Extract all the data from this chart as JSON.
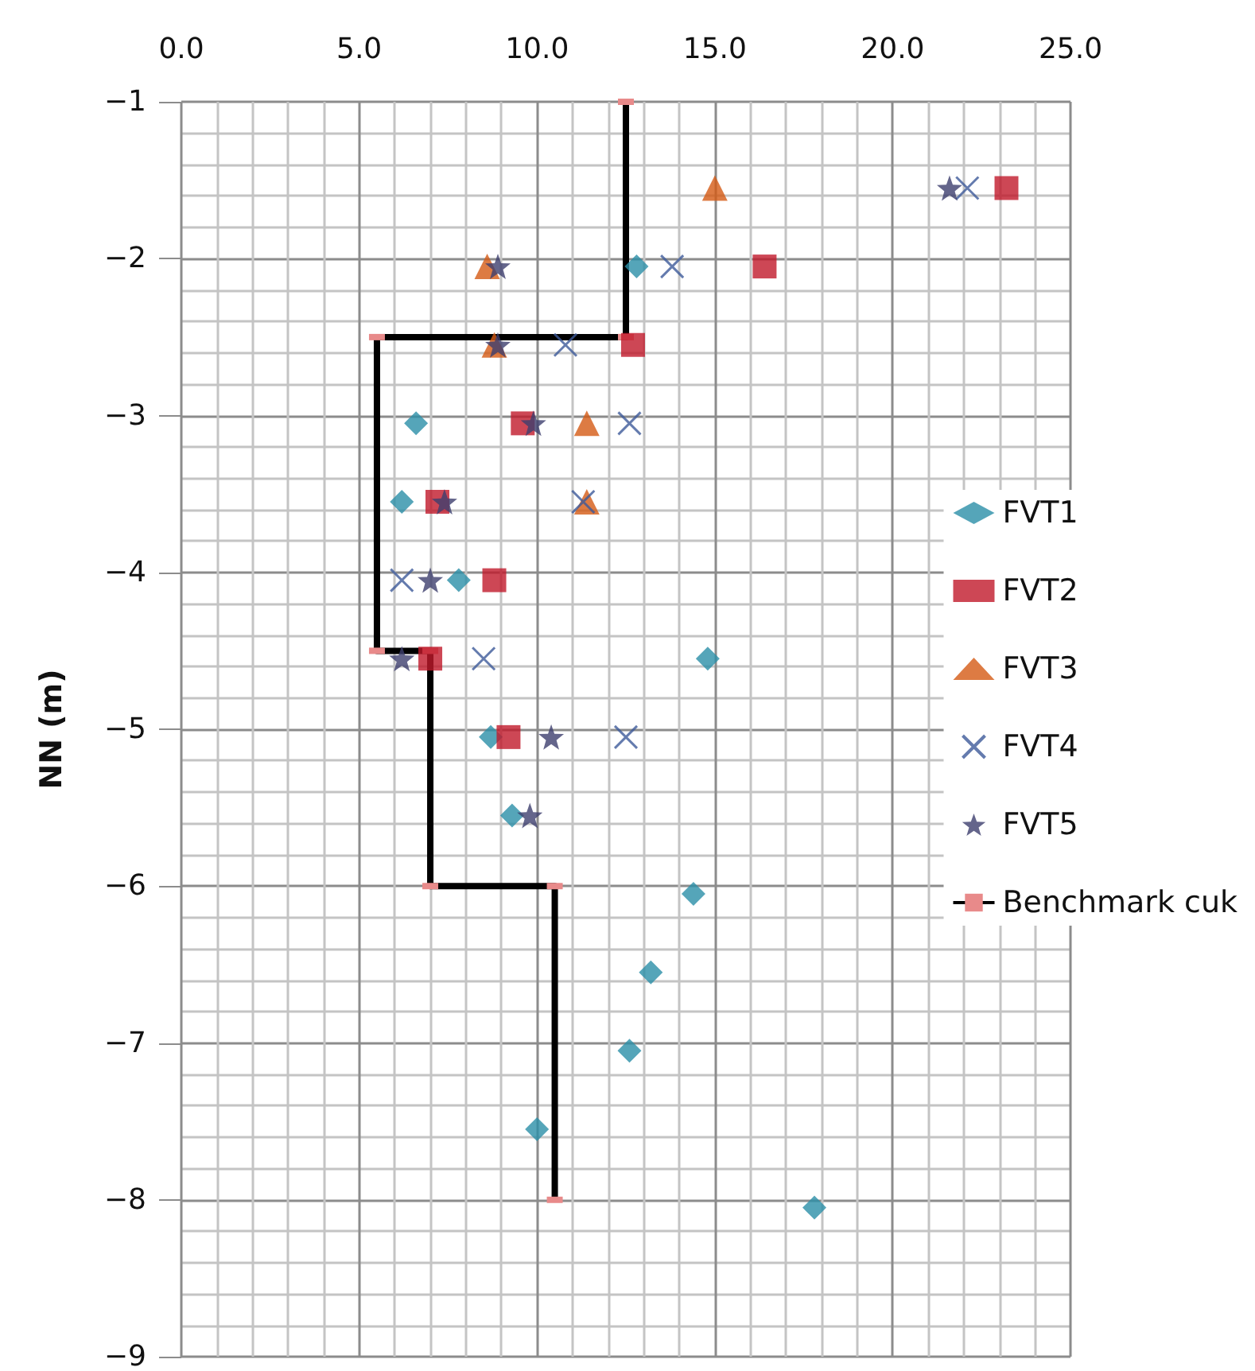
{
  "chart_data": {
    "type": "scatter",
    "ylabel": "NN (m)",
    "xlim": [
      0,
      25
    ],
    "xticks": [
      {
        "value": 0,
        "label": "0.0"
      },
      {
        "value": 5,
        "label": "5.0"
      },
      {
        "value": 10,
        "label": "10.0"
      },
      {
        "value": 15,
        "label": "15.0"
      },
      {
        "value": 20,
        "label": "20.0"
      },
      {
        "value": 25,
        "label": "25.0"
      }
    ],
    "ylim": [
      -9,
      -1
    ],
    "yticks": [
      -9,
      -8,
      -7,
      -6,
      -5,
      -4,
      -3,
      -2,
      -1
    ],
    "grid": true,
    "legend": "right",
    "series": [
      {
        "name": "FVT1",
        "color": "#2a8fa8",
        "marker": "diamond",
        "x": [
          12.8,
          null,
          6.6,
          6.2,
          7.8,
          14.8,
          8.7,
          9.3,
          14.4,
          13.2,
          12.6,
          10.0,
          17.8
        ],
        "values": [
          -2.05,
          null,
          -3.05,
          -3.55,
          -4.05,
          -4.55,
          -5.05,
          -5.55,
          -6.05,
          -6.55,
          -7.05,
          -7.55,
          -8.05
        ]
      },
      {
        "name": "FVT2",
        "color": "#c0192a",
        "marker": "square",
        "x": [
          23.2,
          16.4,
          12.7,
          9.6,
          7.2,
          8.8,
          7.0,
          9.2
        ],
        "values": [
          -1.55,
          -2.05,
          -2.55,
          -3.05,
          -3.55,
          -4.05,
          -4.55,
          -5.05
        ]
      },
      {
        "name": "FVT3",
        "color": "#d45a14",
        "marker": "triangle",
        "x": [
          15.0,
          8.6,
          8.8,
          11.4,
          11.4
        ],
        "values": [
          -1.55,
          -2.05,
          -2.55,
          -3.05,
          -3.55
        ]
      },
      {
        "name": "FVT4",
        "color": "#3d5a9a",
        "marker": "cross",
        "x": [
          22.1,
          13.8,
          10.8,
          12.6,
          11.3,
          6.2,
          8.5,
          12.5
        ],
        "values": [
          -1.55,
          -2.05,
          -2.55,
          -3.05,
          -3.55,
          -4.05,
          -4.55,
          -5.05
        ]
      },
      {
        "name": "FVT5",
        "color": "#3d3f6e",
        "marker": "star",
        "x": [
          21.6,
          8.9,
          8.9,
          9.9,
          7.4,
          7.0,
          6.2,
          10.4,
          9.8
        ],
        "values": [
          -1.55,
          -2.05,
          -2.55,
          -3.05,
          -3.55,
          -4.05,
          -4.55,
          -5.05,
          -5.55
        ]
      },
      {
        "name": "Benchmark cuk",
        "type": "line",
        "color": "#000000",
        "marker": "square",
        "x": [
          12.5,
          12.5,
          5.5,
          5.5,
          7.0,
          7.0,
          10.5,
          10.5
        ],
        "values": [
          -1,
          -2.5,
          -2.5,
          -4.5,
          -4.5,
          -6,
          -6,
          -8
        ]
      }
    ]
  }
}
